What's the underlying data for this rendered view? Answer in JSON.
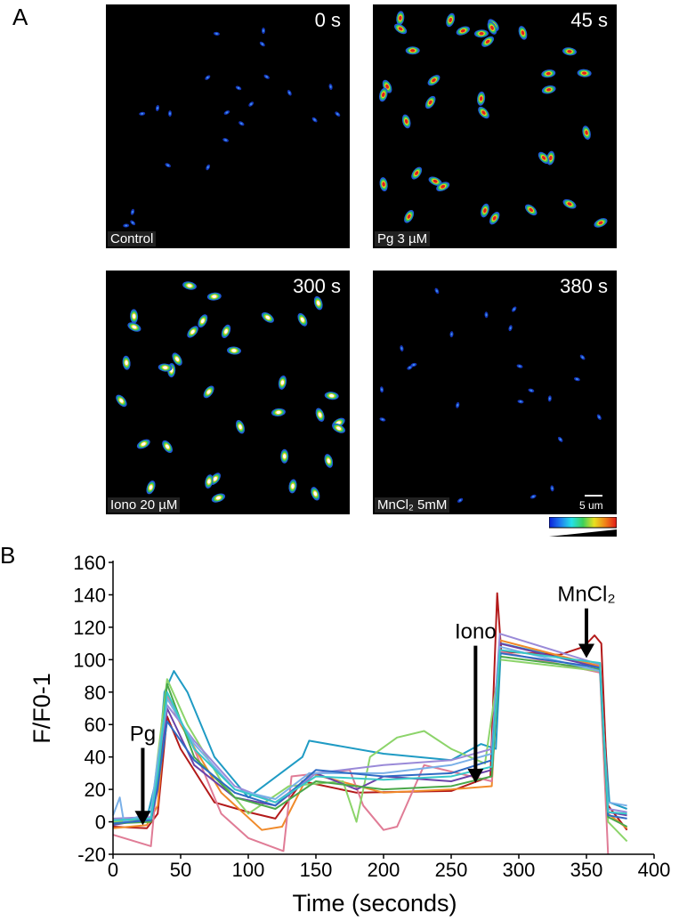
{
  "panel_a": {
    "letter": "A",
    "images": [
      {
        "time": "0 s",
        "treatment": "Control"
      },
      {
        "time": "45 s",
        "treatment": "Pg 3 µM"
      },
      {
        "time": "300 s",
        "treatment": "Iono 20  µM"
      },
      {
        "time": "380 s",
        "treatment": "MnCl₂ 5mM"
      }
    ],
    "scale_bar_label": "5 um",
    "lut_colors": [
      "#0a1fd8",
      "#1e7cf0",
      "#25e0e8",
      "#3cd05a",
      "#e8e020",
      "#f08018",
      "#e01818"
    ]
  },
  "panel_b": {
    "letter": "B"
  },
  "chart_data": {
    "type": "line",
    "xlabel": "Time (seconds)",
    "ylabel": "F/F0-1",
    "xlim": [
      0,
      400
    ],
    "ylim": [
      -20,
      160
    ],
    "xticks": [
      0,
      50,
      100,
      150,
      200,
      250,
      300,
      350,
      400
    ],
    "yticks": [
      -20,
      0,
      20,
      40,
      60,
      80,
      100,
      120,
      140,
      160
    ],
    "grid": false,
    "annotations": [
      {
        "text": "Pg",
        "x": 22,
        "y": 50
      },
      {
        "text": "Iono",
        "x": 268,
        "y": 113
      },
      {
        "text": "MnCl₂",
        "x": 350,
        "y": 136
      }
    ],
    "series": [
      {
        "color": "#1f9bc4",
        "values": [
          [
            0,
            0
          ],
          [
            25,
            2
          ],
          [
            33,
            30
          ],
          [
            38,
            80
          ],
          [
            45,
            93
          ],
          [
            55,
            80
          ],
          [
            75,
            40
          ],
          [
            100,
            15
          ],
          [
            140,
            40
          ],
          [
            145,
            50
          ],
          [
            200,
            42
          ],
          [
            250,
            38
          ],
          [
            272,
            48
          ],
          [
            283,
            45
          ],
          [
            287,
            110
          ],
          [
            360,
            96
          ],
          [
            367,
            12
          ],
          [
            380,
            8
          ]
        ]
      },
      {
        "color": "#b31a1a",
        "values": [
          [
            0,
            -3
          ],
          [
            25,
            -4
          ],
          [
            33,
            5
          ],
          [
            40,
            65
          ],
          [
            50,
            45
          ],
          [
            75,
            12
          ],
          [
            100,
            6
          ],
          [
            120,
            2
          ],
          [
            140,
            25
          ],
          [
            180,
            18
          ],
          [
            250,
            19
          ],
          [
            279,
            28
          ],
          [
            284,
            141
          ],
          [
            287,
            105
          ],
          [
            330,
            103
          ],
          [
            348,
            108
          ],
          [
            356,
            115
          ],
          [
            361,
            110
          ],
          [
            366,
            10
          ],
          [
            380,
            -5
          ]
        ]
      },
      {
        "color": "#f08a2a",
        "values": [
          [
            0,
            -4
          ],
          [
            25,
            -2
          ],
          [
            33,
            10
          ],
          [
            40,
            78
          ],
          [
            50,
            60
          ],
          [
            80,
            18
          ],
          [
            110,
            -5
          ],
          [
            125,
            -3
          ],
          [
            145,
            30
          ],
          [
            200,
            18
          ],
          [
            250,
            20
          ],
          [
            280,
            22
          ],
          [
            286,
            112
          ],
          [
            360,
            96
          ],
          [
            366,
            5
          ],
          [
            380,
            -4
          ]
        ]
      },
      {
        "color": "#e07c96",
        "values": [
          [
            0,
            -8
          ],
          [
            28,
            -15
          ],
          [
            32,
            20
          ],
          [
            40,
            78
          ],
          [
            60,
            45
          ],
          [
            80,
            5
          ],
          [
            100,
            -10
          ],
          [
            126,
            -18
          ],
          [
            132,
            28
          ],
          [
            175,
            32
          ],
          [
            185,
            10
          ],
          [
            200,
            -5
          ],
          [
            210,
            -3
          ],
          [
            230,
            35
          ],
          [
            280,
            25
          ],
          [
            286,
            105
          ],
          [
            360,
            92
          ],
          [
            366,
            -20
          ]
        ]
      },
      {
        "color": "#8cd46a",
        "values": [
          [
            0,
            0
          ],
          [
            28,
            2
          ],
          [
            33,
            40
          ],
          [
            40,
            88
          ],
          [
            55,
            60
          ],
          [
            80,
            25
          ],
          [
            100,
            5
          ],
          [
            130,
            22
          ],
          [
            170,
            25
          ],
          [
            180,
            0
          ],
          [
            190,
            40
          ],
          [
            210,
            52
          ],
          [
            230,
            56
          ],
          [
            250,
            45
          ],
          [
            275,
            36
          ],
          [
            286,
            100
          ],
          [
            360,
            93
          ],
          [
            366,
            0
          ],
          [
            380,
            -12
          ]
        ]
      },
      {
        "color": "#6a42a8",
        "values": [
          [
            0,
            -2
          ],
          [
            28,
            2
          ],
          [
            33,
            20
          ],
          [
            40,
            70
          ],
          [
            60,
            35
          ],
          [
            90,
            15
          ],
          [
            120,
            10
          ],
          [
            150,
            30
          ],
          [
            180,
            20
          ],
          [
            200,
            28
          ],
          [
            250,
            25
          ],
          [
            280,
            32
          ],
          [
            286,
            110
          ],
          [
            360,
            95
          ],
          [
            366,
            6
          ],
          [
            380,
            4
          ]
        ]
      },
      {
        "color": "#4aa84a",
        "values": [
          [
            0,
            -1
          ],
          [
            28,
            0
          ],
          [
            33,
            25
          ],
          [
            40,
            85
          ],
          [
            60,
            40
          ],
          [
            90,
            15
          ],
          [
            120,
            8
          ],
          [
            150,
            25
          ],
          [
            200,
            20
          ],
          [
            250,
            22
          ],
          [
            280,
            28
          ],
          [
            286,
            102
          ],
          [
            360,
            94
          ],
          [
            366,
            3
          ],
          [
            380,
            -3
          ]
        ]
      },
      {
        "color": "#9a8ad8",
        "values": [
          [
            0,
            2
          ],
          [
            28,
            3
          ],
          [
            33,
            35
          ],
          [
            40,
            72
          ],
          [
            60,
            50
          ],
          [
            90,
            22
          ],
          [
            120,
            12
          ],
          [
            150,
            30
          ],
          [
            200,
            35
          ],
          [
            250,
            38
          ],
          [
            280,
            45
          ],
          [
            286,
            116
          ],
          [
            360,
            97
          ],
          [
            366,
            8
          ],
          [
            380,
            6
          ]
        ]
      },
      {
        "color": "#7ab0e8",
        "values": [
          [
            0,
            4
          ],
          [
            5,
            15
          ],
          [
            8,
            0
          ],
          [
            28,
            6
          ],
          [
            33,
            38
          ],
          [
            40,
            76
          ],
          [
            60,
            48
          ],
          [
            90,
            20
          ],
          [
            120,
            14
          ],
          [
            145,
            30
          ],
          [
            200,
            30
          ],
          [
            250,
            35
          ],
          [
            280,
            42
          ],
          [
            286,
            108
          ],
          [
            360,
            93
          ],
          [
            366,
            12
          ],
          [
            380,
            10
          ]
        ]
      },
      {
        "color": "#2f6bc4",
        "values": [
          [
            0,
            -1
          ],
          [
            28,
            1
          ],
          [
            33,
            22
          ],
          [
            40,
            62
          ],
          [
            60,
            38
          ],
          [
            90,
            18
          ],
          [
            120,
            10
          ],
          [
            150,
            32
          ],
          [
            200,
            28
          ],
          [
            250,
            30
          ],
          [
            280,
            38
          ],
          [
            286,
            104
          ],
          [
            360,
            95
          ],
          [
            366,
            4
          ],
          [
            380,
            2
          ]
        ]
      },
      {
        "color": "#38c8c8",
        "values": [
          [
            0,
            1
          ],
          [
            28,
            2
          ],
          [
            33,
            30
          ],
          [
            40,
            80
          ],
          [
            60,
            45
          ],
          [
            90,
            20
          ],
          [
            120,
            12
          ],
          [
            150,
            28
          ],
          [
            200,
            26
          ],
          [
            250,
            28
          ],
          [
            280,
            34
          ],
          [
            286,
            106
          ],
          [
            360,
            98
          ],
          [
            366,
            6
          ],
          [
            380,
            5
          ]
        ]
      }
    ]
  }
}
